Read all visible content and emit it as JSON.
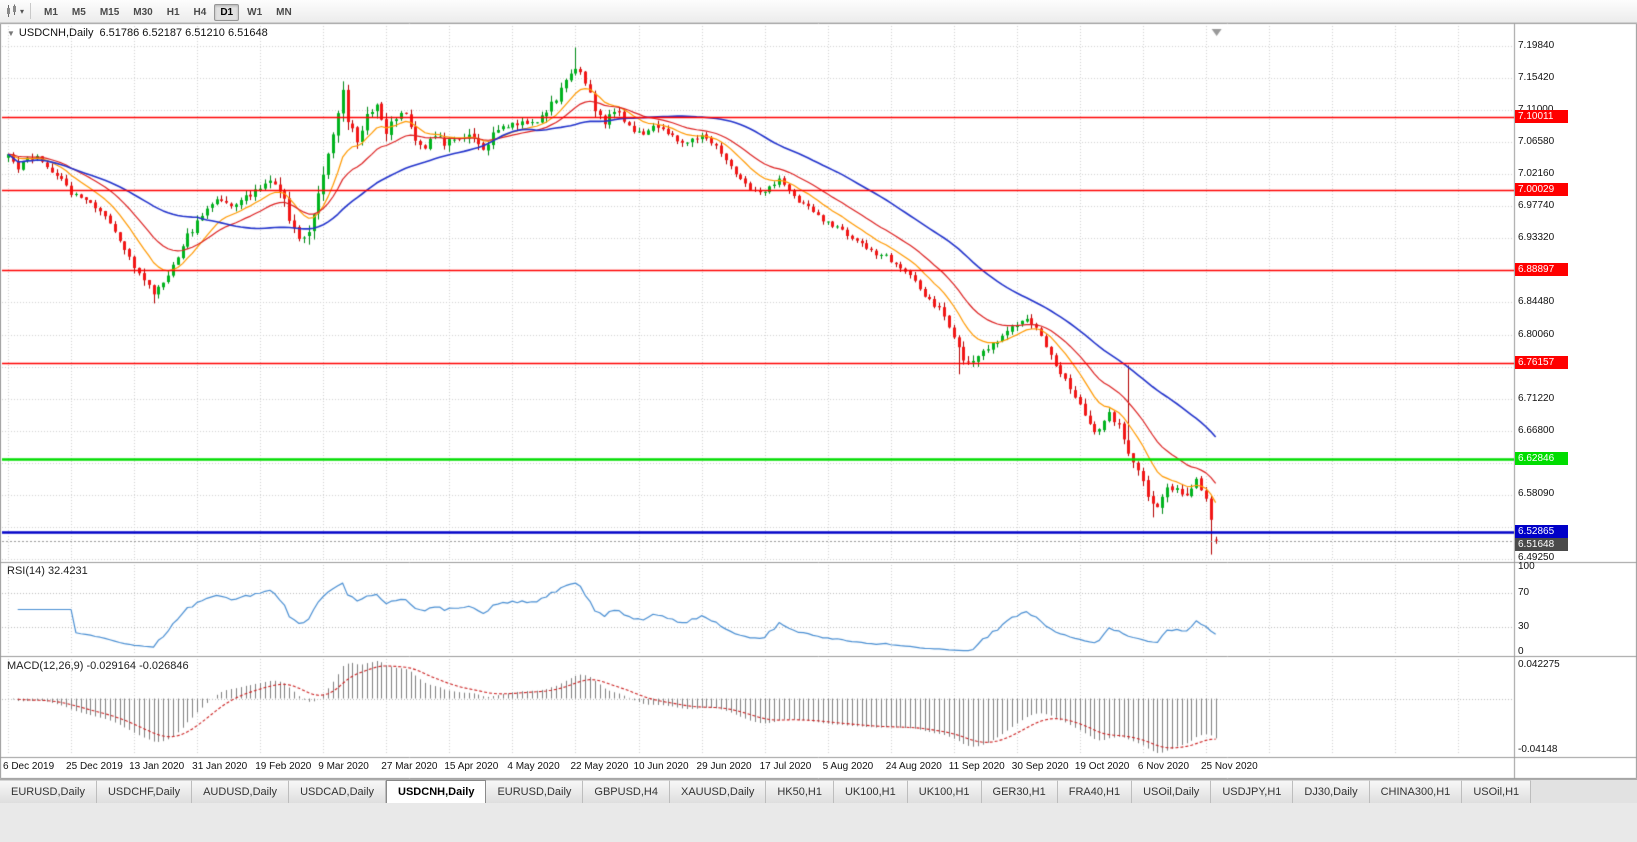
{
  "window": {
    "collapse_arrow": "▼",
    "title_symbol": "USDCNH,Daily",
    "ohlc_text": "6.51786 6.52187 6.51210 6.51648"
  },
  "toolbar": {
    "chart_icon": "candlestick-chart-icon",
    "dropdown_icon": "chevron-down-icon",
    "dropdown_glyph": "▾",
    "timeframes": [
      "M1",
      "M5",
      "M15",
      "M30",
      "H1",
      "H4",
      "D1",
      "W1",
      "MN"
    ],
    "active_timeframe": "D1"
  },
  "price_axis": {
    "labels": [
      {
        "text": "7.19840",
        "price": 7.1984
      },
      {
        "text": "7.15420",
        "price": 7.1542
      },
      {
        "text": "7.11000",
        "price": 7.11
      },
      {
        "text": "7.06580",
        "price": 7.0658
      },
      {
        "text": "7.02160",
        "price": 7.0216
      },
      {
        "text": "6.97740",
        "price": 6.9774
      },
      {
        "text": "6.93320",
        "price": 6.9332
      },
      {
        "text": "6.84480",
        "price": 6.8448
      },
      {
        "text": "6.80060",
        "price": 6.8006
      },
      {
        "text": "6.71220",
        "price": 6.7122
      },
      {
        "text": "6.66800",
        "price": 6.668
      },
      {
        "text": "6.58090",
        "price": 6.5809
      },
      {
        "text": "6.49250",
        "price": 6.4925
      }
    ]
  },
  "date_axis": {
    "labels": [
      "6 Dec 2019",
      "25 Dec 2019",
      "13 Jan 2020",
      "31 Jan 2020",
      "19 Feb 2020",
      "9 Mar 2020",
      "27 Mar 2020",
      "15 Apr 2020",
      "4 May 2020",
      "22 May 2020",
      "10 Jun 2020",
      "29 Jun 2020",
      "17 Jul 2020",
      "5 Aug 2020",
      "24 Aug 2020",
      "11 Sep 2020",
      "30 Sep 2020",
      "19 Oct 2020",
      "6 Nov 2020",
      "25 Nov 2020"
    ]
  },
  "rsi_panel": {
    "label": "RSI(14) 32.4231",
    "axis_labels": [
      {
        "text": "100",
        "value": 100
      },
      {
        "text": "70",
        "value": 70
      },
      {
        "text": "30",
        "value": 30
      },
      {
        "text": "0",
        "value": 0
      }
    ],
    "levels": [
      70,
      30
    ],
    "line_color": "#4a8fd3"
  },
  "macd_panel": {
    "label": "MACD(12,26,9) -0.029164 -0.026846",
    "axis_top": "0.042275",
    "axis_bottom": "-0.04148",
    "histogram_color": "#808080",
    "signal_color": "#cc2222"
  },
  "tabs": {
    "active_index": 4,
    "items": [
      "EURUSD,Daily",
      "USDCHF,Daily",
      "AUDUSD,Daily",
      "USDCAD,Daily",
      "USDCNH,Daily",
      "EURUSD,Daily",
      "GBPUSD,H4",
      "XAUUSD,Daily",
      "HK50,H1",
      "UK100,H1",
      "UK100,H1",
      "GER30,H1",
      "FRA40,H1",
      "USOil,Daily",
      "USDJPY,H1",
      "DJ30,Daily",
      "CHINA300,H1",
      "USOil,H1"
    ]
  },
  "chart_data": {
    "type": "candlestick",
    "symbol": "USDCNH",
    "timeframe": "Daily",
    "last_ohlc": {
      "open": 6.51786,
      "high": 6.52187,
      "low": 6.5121,
      "close": 6.51648
    },
    "y_range": [
      6.4925,
      7.1984
    ],
    "grid_price_top": 7.1984,
    "grid_step": 0.0442,
    "n_candles": 250,
    "date_ticks_every": 13,
    "up_color": "#00B41E",
    "down_color": "#F21616",
    "close_path": [
      [
        0,
        7.046
      ],
      [
        2,
        7.03
      ],
      [
        4,
        7.042
      ],
      [
        6,
        7.048
      ],
      [
        8,
        7.031
      ],
      [
        10,
        7.022
      ],
      [
        13,
        6.996
      ],
      [
        16,
        6.988
      ],
      [
        19,
        6.971
      ],
      [
        22,
        6.944
      ],
      [
        25,
        6.905
      ],
      [
        28,
        6.878
      ],
      [
        30,
        6.856
      ],
      [
        32,
        6.874
      ],
      [
        34,
        6.898
      ],
      [
        37,
        6.936
      ],
      [
        40,
        6.964
      ],
      [
        43,
        6.99
      ],
      [
        46,
        6.979
      ],
      [
        49,
        6.992
      ],
      [
        52,
        7.001
      ],
      [
        54,
        7.014
      ],
      [
        56,
        7.002
      ],
      [
        58,
        6.961
      ],
      [
        60,
        6.93
      ],
      [
        62,
        6.947
      ],
      [
        64,
        6.994
      ],
      [
        66,
        7.053
      ],
      [
        68,
        7.109
      ],
      [
        69,
        7.139
      ],
      [
        70,
        7.091
      ],
      [
        72,
        7.072
      ],
      [
        74,
        7.103
      ],
      [
        76,
        7.117
      ],
      [
        78,
        7.083
      ],
      [
        80,
        7.097
      ],
      [
        82,
        7.107
      ],
      [
        84,
        7.064
      ],
      [
        86,
        7.056
      ],
      [
        88,
        7.077
      ],
      [
        90,
        7.062
      ],
      [
        92,
        7.071
      ],
      [
        95,
        7.079
      ],
      [
        98,
        7.058
      ],
      [
        101,
        7.083
      ],
      [
        104,
        7.095
      ],
      [
        107,
        7.087
      ],
      [
        110,
        7.103
      ],
      [
        113,
        7.127
      ],
      [
        115,
        7.151
      ],
      [
        117,
        7.169
      ],
      [
        119,
        7.151
      ],
      [
        121,
        7.113
      ],
      [
        123,
        7.092
      ],
      [
        125,
        7.111
      ],
      [
        127,
        7.097
      ],
      [
        129,
        7.082
      ],
      [
        131,
        7.076
      ],
      [
        133,
        7.091
      ],
      [
        135,
        7.084
      ],
      [
        137,
        7.074
      ],
      [
        139,
        7.064
      ],
      [
        141,
        7.069
      ],
      [
        143,
        7.073
      ],
      [
        145,
        7.064
      ],
      [
        147,
        7.052
      ],
      [
        149,
        7.034
      ],
      [
        151,
        7.014
      ],
      [
        153,
        7.002
      ],
      [
        155,
        6.994
      ],
      [
        157,
        7.005
      ],
      [
        159,
        7.013
      ],
      [
        161,
        6.996
      ],
      [
        163,
        6.984
      ],
      [
        165,
        6.976
      ],
      [
        167,
        6.964
      ],
      [
        169,
        6.954
      ],
      [
        171,
        6.948
      ],
      [
        173,
        6.938
      ],
      [
        175,
        6.93
      ],
      [
        177,
        6.92
      ],
      [
        179,
        6.912
      ],
      [
        181,
        6.908
      ],
      [
        183,
        6.898
      ],
      [
        185,
        6.89
      ],
      [
        187,
        6.873
      ],
      [
        189,
        6.855
      ],
      [
        191,
        6.841
      ],
      [
        193,
        6.827
      ],
      [
        195,
        6.797
      ],
      [
        197,
        6.767
      ],
      [
        198,
        6.759
      ],
      [
        200,
        6.772
      ],
      [
        202,
        6.781
      ],
      [
        204,
        6.793
      ],
      [
        206,
        6.805
      ],
      [
        208,
        6.817
      ],
      [
        210,
        6.826
      ],
      [
        212,
        6.809
      ],
      [
        214,
        6.781
      ],
      [
        216,
        6.757
      ],
      [
        218,
        6.741
      ],
      [
        220,
        6.716
      ],
      [
        222,
        6.689
      ],
      [
        224,
        6.668
      ],
      [
        226,
        6.679
      ],
      [
        227,
        6.692
      ],
      [
        229,
        6.673
      ],
      [
        231,
        6.641
      ],
      [
        233,
        6.612
      ],
      [
        235,
        6.578
      ],
      [
        237,
        6.559
      ],
      [
        239,
        6.589
      ],
      [
        241,
        6.585
      ],
      [
        243,
        6.577
      ],
      [
        245,
        6.601
      ],
      [
        247,
        6.577
      ],
      [
        248,
        6.546
      ],
      [
        249,
        6.51648
      ]
    ],
    "wick_overrides": [
      {
        "i": 30,
        "low": 6.8435
      },
      {
        "i": 117,
        "high": 7.1962
      },
      {
        "i": 196,
        "low": 6.7458
      },
      {
        "i": 231,
        "high": 6.758
      },
      {
        "i": 236,
        "low": 6.5485
      },
      {
        "i": 248,
        "low": 6.4972
      }
    ],
    "hlines": [
      {
        "price": 7.10011,
        "label": "7.10011",
        "color": "#ff0000",
        "width": 1
      },
      {
        "price": 7.00029,
        "label": "7.00029",
        "color": "#ff0000",
        "width": 1
      },
      {
        "price": 6.88897,
        "label": "6.88897",
        "color": "#ff0000",
        "width": 1
      },
      {
        "price": 6.76157,
        "label": "6.76157",
        "color": "#ff0000",
        "width": 1
      },
      {
        "price": 6.62846,
        "label": "6.62846",
        "color": "#00dd00",
        "width": 2
      },
      {
        "price": 6.52865,
        "label": "6.52865",
        "color": "#0000c8",
        "width": 2
      }
    ],
    "current_price": {
      "value": 6.51648,
      "label": "6.51648",
      "tag_color": "#4a4a4a"
    },
    "moving_averages": [
      {
        "period": 10,
        "method": "EMA",
        "color": "#ff9900"
      },
      {
        "period": 20,
        "method": "EMA",
        "color": "#dd2222"
      },
      {
        "period": 40,
        "method": "SMA",
        "color": "#2233cc"
      }
    ],
    "rsi": {
      "period": 14,
      "value": 32.4231
    },
    "macd": {
      "fast": 12,
      "slow": 26,
      "signal_period": 9,
      "value": -0.029164,
      "signal_value": -0.026846
    }
  }
}
